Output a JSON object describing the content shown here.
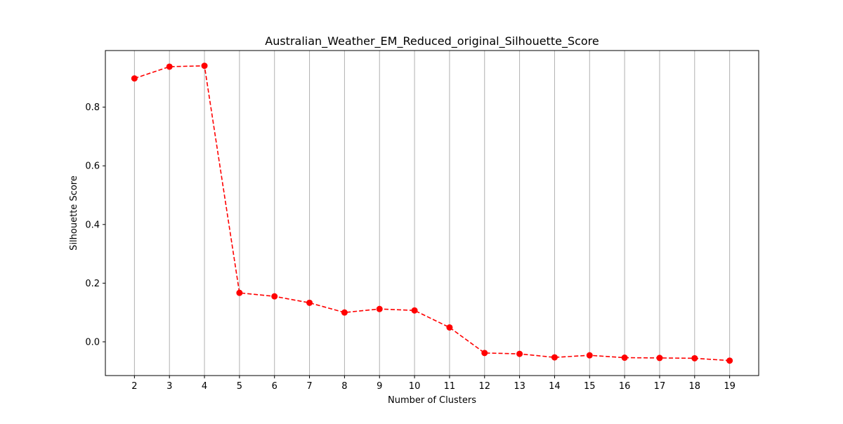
{
  "chart_data": {
    "type": "line",
    "title": "Australian_Weather_EM_Reduced_original_Silhouette_Score",
    "xlabel": "Number of Clusters",
    "ylabel": "Silhouette Score",
    "x": [
      2,
      3,
      4,
      5,
      6,
      7,
      8,
      9,
      10,
      11,
      12,
      13,
      14,
      15,
      16,
      17,
      18,
      19
    ],
    "series": [
      {
        "values": [
          0.898,
          0.938,
          0.941,
          0.167,
          0.155,
          0.133,
          0.1,
          0.112,
          0.107,
          0.049,
          -0.038,
          -0.041,
          -0.053,
          -0.046,
          -0.054,
          -0.055,
          -0.056,
          -0.064
        ],
        "color": "#ff0000",
        "line_style": "dashed",
        "marker": "circle"
      }
    ],
    "x_ticks": [
      "2",
      "3",
      "4",
      "5",
      "6",
      "7",
      "8",
      "9",
      "10",
      "11",
      "12",
      "13",
      "14",
      "15",
      "16",
      "17",
      "18",
      "19"
    ],
    "y_ticks": [
      0.0,
      0.2,
      0.4,
      0.6,
      0.8
    ],
    "y_tick_labels": [
      "0.0",
      "0.2",
      "0.4",
      "0.6",
      "0.8"
    ],
    "xlim": [
      1.17,
      19.83
    ],
    "ylim": [
      -0.115,
      0.993
    ],
    "grid": "vertical",
    "grid_color": "#b0b0b0"
  }
}
